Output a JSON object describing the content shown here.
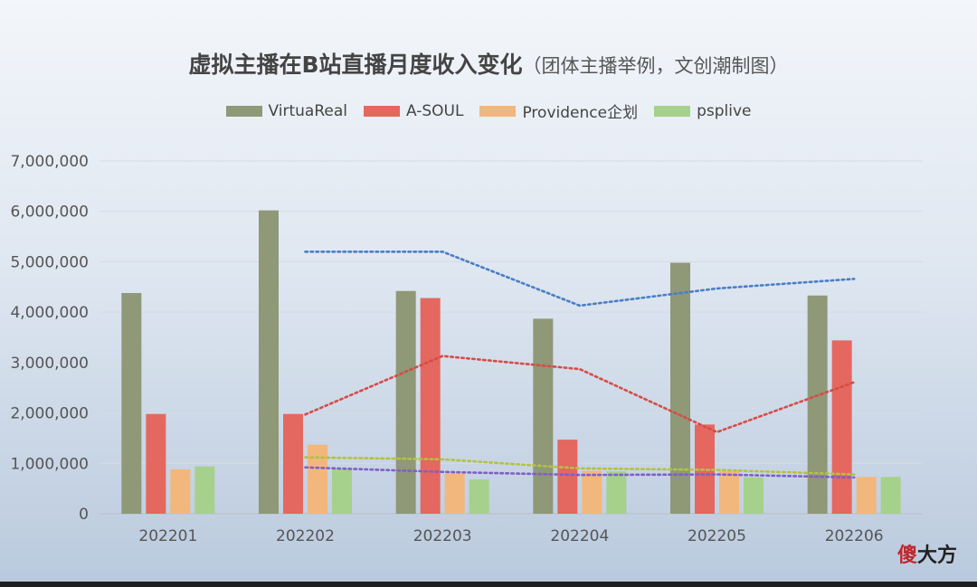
{
  "chart_data": {
    "type": "bar",
    "title": "虚拟主播在B站直播月度收入变化",
    "subtitle": "（团体主播举例，文创潮制图）",
    "categories": [
      "202201",
      "202202",
      "202203",
      "202204",
      "202205",
      "202206"
    ],
    "ylim": [
      0,
      7000000
    ],
    "yticks": [
      0,
      1000000,
      2000000,
      3000000,
      4000000,
      5000000,
      6000000,
      7000000
    ],
    "ytick_labels": [
      "0",
      "1,000,000",
      "2,000,000",
      "3,000,000",
      "4,000,000",
      "5,000,000",
      "6,000,000",
      "7,000,000"
    ],
    "grid": true,
    "legend_position": "top-center",
    "series": [
      {
        "name": "VirtuaReal",
        "color": "#8f9877",
        "values": [
          4380000,
          6020000,
          4420000,
          3870000,
          4980000,
          4330000
        ]
      },
      {
        "name": "A-SOUL",
        "color": "#e4685f",
        "values": [
          1980000,
          1980000,
          4280000,
          1470000,
          1770000,
          3440000
        ]
      },
      {
        "name": "Providence企划",
        "color": "#f2b77d",
        "values": [
          880000,
          1370000,
          800000,
          850000,
          840000,
          730000
        ]
      },
      {
        "name": "psplive",
        "color": "#a5d18c",
        "values": [
          940000,
          890000,
          680000,
          840000,
          720000,
          730000
        ]
      }
    ],
    "trendlines": [
      {
        "series": "VirtuaReal",
        "color": "#4a7ec4",
        "x": [
          "202202",
          "202203",
          "202204",
          "202205",
          "202206"
        ],
        "values": [
          5200000,
          5200000,
          4130000,
          4470000,
          4660000
        ]
      },
      {
        "series": "A-SOUL",
        "color": "#d84b45",
        "x": [
          "202202",
          "202203",
          "202204",
          "202205",
          "202206"
        ],
        "values": [
          1970000,
          3130000,
          2870000,
          1620000,
          2610000
        ]
      },
      {
        "series": "Providence企划",
        "color": "#b4c241",
        "x": [
          "202202",
          "202203",
          "202204",
          "202205",
          "202206"
        ],
        "values": [
          1120000,
          1080000,
          900000,
          870000,
          780000
        ]
      },
      {
        "series": "psplive",
        "color": "#7f5fc7",
        "x": [
          "202202",
          "202203",
          "202204",
          "202205",
          "202206"
        ],
        "values": [
          920000,
          830000,
          770000,
          780000,
          720000
        ]
      }
    ]
  },
  "watermark": {
    "first": "傻",
    "rest": "大方"
  }
}
